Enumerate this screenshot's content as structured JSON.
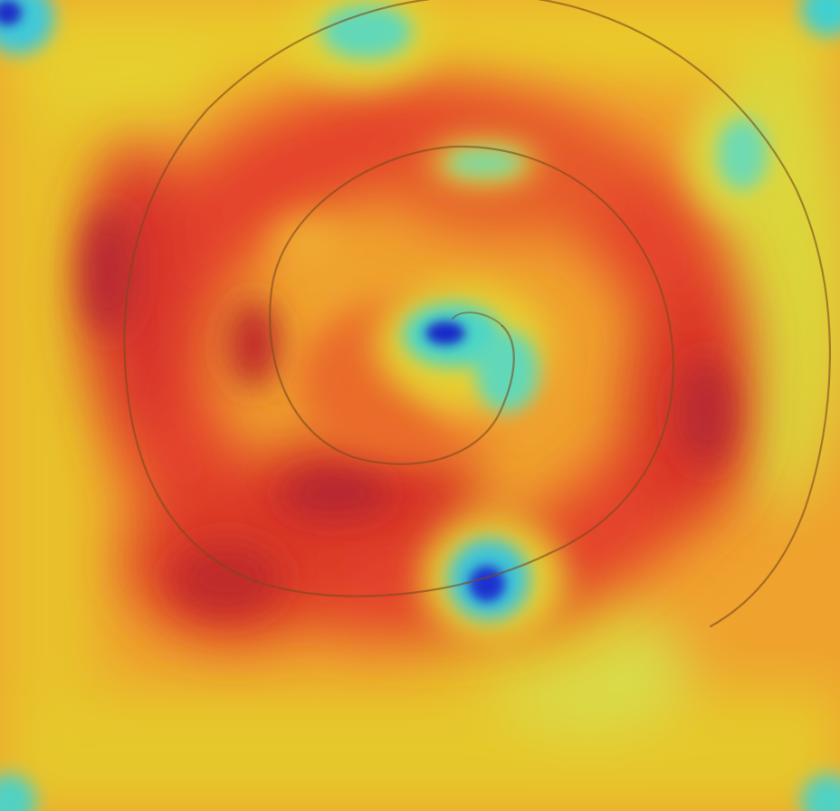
{
  "image": {
    "description_tag": "heatmap-spiral-overlay",
    "colormap": "jet",
    "base_color": "#f0a030",
    "spiral_color": "#7a4a1a"
  }
}
